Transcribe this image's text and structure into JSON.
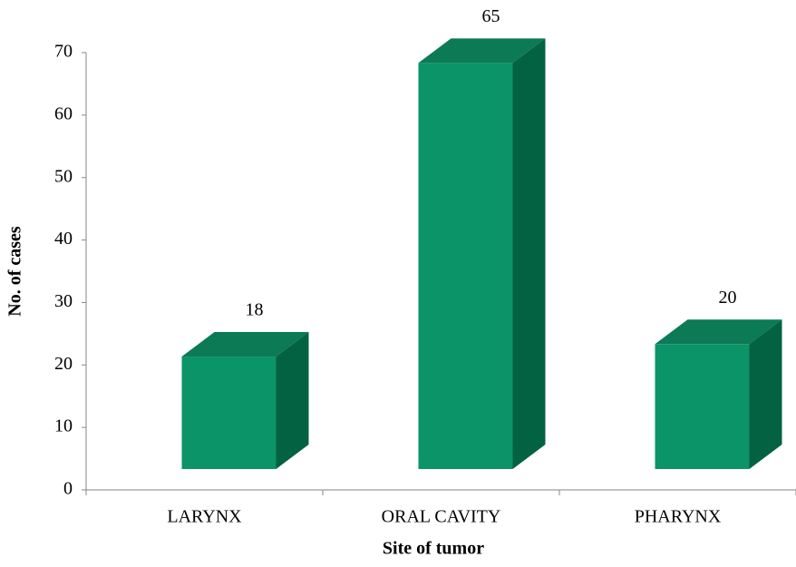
{
  "chart_data": {
    "type": "bar3d",
    "x_label": "Site of tumor",
    "y_label": "No. of cases",
    "categories": [
      "LARYNX",
      "ORAL CAVITY",
      "PHARYNX"
    ],
    "values": [
      18,
      65,
      20
    ],
    "color": "#0a9467",
    "ylim": [
      0,
      70
    ],
    "yticks": [
      0,
      10,
      20,
      30,
      40,
      50,
      60,
      70
    ]
  }
}
